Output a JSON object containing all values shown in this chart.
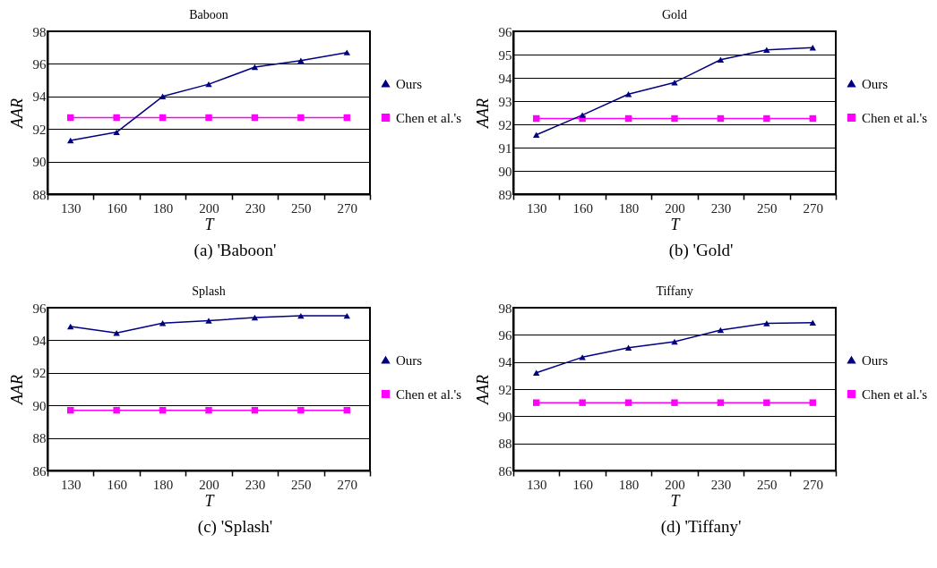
{
  "chart_data": [
    {
      "type": "line",
      "title": "Baboon",
      "xlabel": "T",
      "ylabel": "AAR",
      "annotations": [
        "(a) 'Baboon'"
      ],
      "categories": [
        "130",
        "160",
        "180",
        "200",
        "230",
        "250",
        "270"
      ],
      "ylim": [
        88,
        98
      ],
      "yticks": [
        88,
        90,
        92,
        94,
        96,
        98
      ],
      "grid": "y",
      "legend": "right",
      "line_style": "solid",
      "series": [
        {
          "name": "Ours",
          "color": "#000080",
          "marker": "triangle",
          "values": [
            91.3,
            91.8,
            94.0,
            94.75,
            95.8,
            96.2,
            96.7
          ]
        },
        {
          "name": "Chen et al.'s",
          "color": "#ff00ff",
          "marker": "square",
          "values": [
            92.7,
            92.7,
            92.7,
            92.7,
            92.7,
            92.7,
            92.7
          ]
        }
      ]
    },
    {
      "type": "line",
      "title": "Gold",
      "xlabel": "T",
      "ylabel": "AAR",
      "annotations": [
        "(b) 'Gold'"
      ],
      "categories": [
        "130",
        "160",
        "180",
        "200",
        "230",
        "250",
        "270"
      ],
      "ylim": [
        89,
        96
      ],
      "yticks": [
        89,
        90,
        91,
        92,
        93,
        94,
        95,
        96
      ],
      "grid": "y",
      "legend": "right",
      "line_style": "solid",
      "series": [
        {
          "name": "Ours",
          "color": "#000080",
          "marker": "triangle",
          "values": [
            91.55,
            92.4,
            93.3,
            93.8,
            94.78,
            95.2,
            95.3
          ]
        },
        {
          "name": "Chen et al.'s",
          "color": "#ff00ff",
          "marker": "square",
          "values": [
            92.25,
            92.25,
            92.25,
            92.25,
            92.25,
            92.25,
            92.25
          ]
        }
      ]
    },
    {
      "type": "line",
      "title": "Splash",
      "xlabel": "T",
      "ylabel": "AAR",
      "annotations": [
        "(c) 'Splash'"
      ],
      "categories": [
        "130",
        "160",
        "180",
        "200",
        "230",
        "250",
        "270"
      ],
      "ylim": [
        86,
        96
      ],
      "yticks": [
        86,
        88,
        90,
        92,
        94,
        96
      ],
      "grid": "y",
      "legend": "right",
      "line_style": "solid",
      "series": [
        {
          "name": "Ours",
          "color": "#000080",
          "marker": "triangle",
          "values": [
            94.85,
            94.45,
            95.05,
            95.2,
            95.4,
            95.5,
            95.5
          ]
        },
        {
          "name": "Chen et al.'s",
          "color": "#ff00ff",
          "marker": "square",
          "values": [
            89.7,
            89.7,
            89.7,
            89.7,
            89.7,
            89.7,
            89.7
          ]
        }
      ]
    },
    {
      "type": "line",
      "title": "Tiffany",
      "xlabel": "T",
      "ylabel": "AAR",
      "annotations": [
        "(d) 'Tiffany'"
      ],
      "categories": [
        "130",
        "160",
        "180",
        "200",
        "230",
        "250",
        "270"
      ],
      "ylim": [
        86,
        98
      ],
      "yticks": [
        86,
        88,
        90,
        92,
        94,
        96,
        98
      ],
      "grid": "y",
      "legend": "right",
      "line_style": "solid",
      "series": [
        {
          "name": "Ours",
          "color": "#000080",
          "marker": "triangle",
          "values": [
            93.2,
            94.35,
            95.05,
            95.5,
            96.35,
            96.85,
            96.9
          ]
        },
        {
          "name": "Chen et al.'s",
          "color": "#ff00ff",
          "marker": "square",
          "values": [
            91.0,
            91.0,
            91.0,
            91.0,
            91.0,
            91.0,
            91.0
          ]
        }
      ]
    }
  ]
}
